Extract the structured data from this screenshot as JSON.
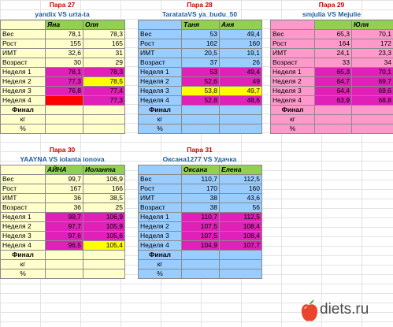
{
  "colors": {
    "pair_title": "#cc0000",
    "pair_subtitle": "#1f5e9c",
    "header_green": "#92d050",
    "yellow_bg": "#ffffcc",
    "blue_bg": "#99ccff",
    "pink_bg": "#ff99cc",
    "magenta": "#e020b8",
    "highlight_yellow": "#ffff00",
    "highlight_red": "#ff0000"
  },
  "row_labels": [
    "Вес",
    "Рост",
    "ИМТ",
    "Возраст",
    "Неделя 1",
    "Неделя 2",
    "Неделя 3",
    "Неделя 4",
    "Финал",
    "кг",
    "%"
  ],
  "panels": [
    {
      "title": "Пара 27",
      "subtitle": "yandix VS urta-ta",
      "players": [
        "Яна",
        "Оля"
      ],
      "rows": [
        [
          "78,1",
          "78,3"
        ],
        [
          "155",
          "165"
        ],
        [
          "32,6",
          "31"
        ],
        [
          "30",
          "29"
        ],
        [
          "78,1",
          "78,3"
        ],
        [
          "77,3",
          "78,5"
        ],
        [
          "76,8",
          "77,4"
        ],
        [
          "",
          "77,3"
        ],
        [
          "",
          ""
        ],
        [
          "",
          ""
        ],
        [
          "",
          ""
        ]
      ]
    },
    {
      "title": "Пара 28",
      "subtitle": "TaratataVS ya_budu_50",
      "players": [
        "Таня",
        "Аня"
      ],
      "rows": [
        [
          "53",
          "49,4"
        ],
        [
          "162",
          "160"
        ],
        [
          "20,5",
          "19,1"
        ],
        [
          "37",
          "26"
        ],
        [
          "53",
          "49,4"
        ],
        [
          "52,6",
          "49"
        ],
        [
          "53,8",
          "49,7"
        ],
        [
          "52,8",
          "48,6"
        ],
        [
          "",
          ""
        ],
        [
          "",
          ""
        ],
        [
          "",
          ""
        ]
      ]
    },
    {
      "title": "Пара 29",
      "subtitle": "smjulia VS Mejulie",
      "players": [
        "",
        "Юля"
      ],
      "rows": [
        [
          "65,3",
          "70,1"
        ],
        [
          "164",
          "172"
        ],
        [
          "24,1",
          "23,3"
        ],
        [
          "33",
          "34"
        ],
        [
          "65,3",
          "70,1"
        ],
        [
          "64,7",
          "69,7"
        ],
        [
          "64,4",
          "69,6"
        ],
        [
          "63,9",
          "68,8"
        ],
        [
          "",
          ""
        ],
        [
          "",
          ""
        ],
        [
          "",
          ""
        ]
      ]
    },
    {
      "title": "Пара 30",
      "subtitle": "YAAYNA VS iolanta ionova",
      "players": [
        "АЙНА",
        "Иоланта"
      ],
      "rows": [
        [
          "99,7",
          "106,9"
        ],
        [
          "167",
          "166"
        ],
        [
          "36",
          "38,5"
        ],
        [
          "36",
          "25"
        ],
        [
          "99,7",
          "106,9"
        ],
        [
          "97,7",
          "105,9"
        ],
        [
          "97,6",
          "105,6"
        ],
        [
          "96,5",
          "105,4"
        ],
        [
          "",
          ""
        ],
        [
          "",
          ""
        ],
        [
          "",
          ""
        ]
      ]
    },
    {
      "title": "Пара 31",
      "subtitle": "Оксана1277 VS Удачка",
      "players": [
        "Оксана",
        "Елена"
      ],
      "rows": [
        [
          "110,7",
          "112,5"
        ],
        [
          "170",
          "160"
        ],
        [
          "38",
          "43,6"
        ],
        [
          "38",
          "56"
        ],
        [
          "110,7",
          "112,5"
        ],
        [
          "107,5",
          "108,4"
        ],
        [
          "107,5",
          "108,4"
        ],
        [
          "104,9",
          "107,7"
        ],
        [
          "",
          ""
        ],
        [
          "",
          ""
        ],
        [
          "",
          ""
        ]
      ]
    }
  ],
  "logo": {
    "text": "diets.ru",
    "icon": "apple-icon"
  }
}
